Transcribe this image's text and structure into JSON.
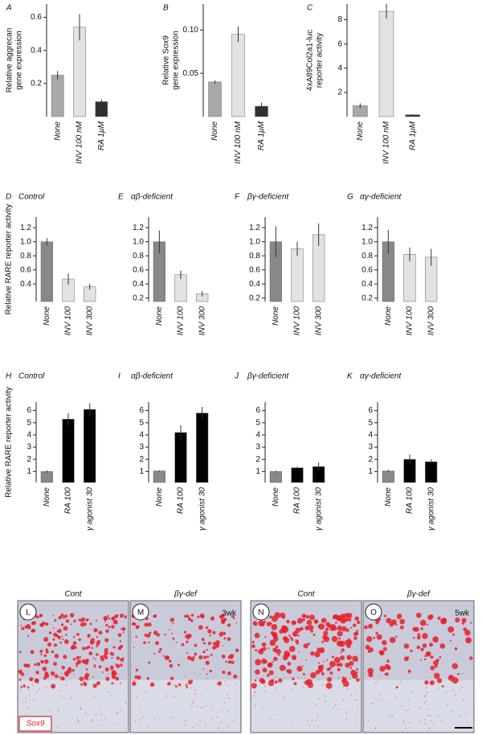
{
  "chart_data": [
    {
      "type": "bar",
      "label": "A",
      "ylabel": [
        "Relative aggrecan",
        "gene expression"
      ],
      "categories": [
        "None",
        "INV 100 nM",
        "RA 1µM"
      ],
      "values": [
        0.25,
        0.54,
        0.09
      ],
      "errors": [
        0.025,
        0.08,
        0.015
      ],
      "colors": [
        "#a8a8a8",
        "#e2e2e2",
        "#303030"
      ],
      "ylim": [
        0,
        0.68
      ],
      "yticks": [
        {
          "value": 0.2,
          "label": "0.2"
        },
        {
          "value": 0.4,
          "label": "0.4"
        },
        {
          "value": 0.6,
          "label": "0.6"
        }
      ]
    },
    {
      "type": "bar",
      "label": "B",
      "ylabel": [
        "Relative Sox9",
        "gene expression"
      ],
      "categories": [
        "None",
        "INV 100 nM",
        "RA 1µM"
      ],
      "values": [
        0.04,
        0.095,
        0.012
      ],
      "errors": [
        0.002,
        0.009,
        0.004
      ],
      "colors": [
        "#a8a8a8",
        "#e2e2e2",
        "#303030"
      ],
      "ylim": [
        0,
        0.13
      ],
      "yticks": [
        {
          "value": 0.05,
          "label": "0.05"
        },
        {
          "value": 0.1,
          "label": "0.10"
        }
      ]
    },
    {
      "type": "bar",
      "label": "C",
      "ylabel": [
        "4xA89Col2a1-luc",
        "reporter activity"
      ],
      "categories": [
        "None",
        "INV 100 nM",
        "RA 1µM"
      ],
      "values": [
        0.9,
        8.7,
        0.15
      ],
      "errors": [
        0.2,
        0.6,
        0.05
      ],
      "colors": [
        "#a8a8a8",
        "#e2e2e2",
        "#303030"
      ],
      "ylim": [
        0,
        9.3
      ],
      "yticks": [
        2,
        4,
        6,
        8
      ]
    },
    {
      "type": "bar",
      "label": "D",
      "title": "Control",
      "ylabel": [
        "Relative RARE reporter activity"
      ],
      "categories": [
        "None",
        "INV 100",
        "INV 300"
      ],
      "values": [
        1.0,
        0.47,
        0.36
      ],
      "errors": [
        0.05,
        0.08,
        0.04
      ],
      "colors": [
        "#888888",
        "#e2e2e2",
        "#e2e2e2"
      ],
      "ylim": [
        0.15,
        1.35
      ],
      "yticks": [
        {
          "value": 0.4,
          "label": "0.4"
        },
        {
          "value": 0.6,
          "label": "0.6"
        },
        {
          "value": 0.8,
          "label": "0.8"
        },
        {
          "value": 1,
          "label": "1.0"
        },
        {
          "value": 1.2,
          "label": "1.2"
        }
      ]
    },
    {
      "type": "bar",
      "label": "E",
      "title": "αβ-deficient",
      "categories": [
        "None",
        "INV 100",
        "INV 300"
      ],
      "values": [
        1.0,
        0.53,
        0.26
      ],
      "errors": [
        0.16,
        0.06,
        0.04
      ],
      "colors": [
        "#888888",
        "#e2e2e2",
        "#e2e2e2"
      ],
      "ylim": [
        0.15,
        1.35
      ],
      "yticks": [
        {
          "value": 0.2,
          "label": "0.2"
        },
        {
          "value": 0.4,
          "label": "0.4"
        },
        {
          "value": 0.6,
          "label": "0.6"
        },
        {
          "value": 0.8,
          "label": "0.8"
        },
        {
          "value": 1,
          "label": "1.0"
        },
        {
          "value": 1.2,
          "label": "1.2"
        }
      ]
    },
    {
      "type": "bar",
      "label": "F",
      "title": "βγ-deficient",
      "categories": [
        "None",
        "INV 100",
        "INV 300"
      ],
      "values": [
        1.0,
        0.9,
        1.1
      ],
      "errors": [
        0.22,
        0.1,
        0.16
      ],
      "colors": [
        "#888888",
        "#e2e2e2",
        "#e2e2e2"
      ],
      "ylim": [
        0.15,
        1.35
      ],
      "yticks": [
        {
          "value": 0.2,
          "label": "0.2"
        },
        {
          "value": 0.4,
          "label": "0.4"
        },
        {
          "value": 0.6,
          "label": "0.6"
        },
        {
          "value": 0.8,
          "label": "0.8"
        },
        {
          "value": 1,
          "label": "1.0"
        },
        {
          "value": 1.2,
          "label": "1.2"
        }
      ]
    },
    {
      "type": "bar",
      "label": "G",
      "title": "αγ-deficient",
      "categories": [
        "None",
        "INV 100",
        "INV 300"
      ],
      "values": [
        1.0,
        0.82,
        0.78
      ],
      "errors": [
        0.17,
        0.1,
        0.12
      ],
      "colors": [
        "#888888",
        "#e2e2e2",
        "#e2e2e2"
      ],
      "ylim": [
        0.15,
        1.35
      ],
      "yticks": [
        {
          "value": 0.2,
          "label": "0.2"
        },
        {
          "value": 0.4,
          "label": "0.4"
        },
        {
          "value": 0.6,
          "label": "0.6"
        },
        {
          "value": 0.8,
          "label": "0.8"
        },
        {
          "value": 1,
          "label": "1.0"
        },
        {
          "value": 1.2,
          "label": "1.2"
        }
      ]
    },
    {
      "type": "bar",
      "label": "H",
      "title": "Control",
      "ylabel": [
        "Relative RARE reporter activity"
      ],
      "categories": [
        "None",
        "RA 100",
        "γ agonist 30"
      ],
      "values": [
        1.0,
        5.3,
        6.1
      ],
      "errors": [
        0.1,
        0.5,
        0.5
      ],
      "colors": [
        "#888888",
        "#000000",
        "#000000"
      ],
      "ylim": [
        0.1,
        6.7
      ],
      "yticks": [
        1,
        2,
        3,
        4,
        5,
        6
      ]
    },
    {
      "type": "bar",
      "label": "I",
      "title": "αβ-deficient",
      "categories": [
        "None",
        "RA 100",
        "γ agonist 30"
      ],
      "values": [
        1.05,
        4.2,
        5.8
      ],
      "errors": [
        0.05,
        0.6,
        0.5
      ],
      "colors": [
        "#888888",
        "#000000",
        "#000000"
      ],
      "ylim": [
        0.1,
        6.7
      ],
      "yticks": [
        1,
        2,
        3,
        4,
        5,
        6
      ]
    },
    {
      "type": "bar",
      "label": "J",
      "title": "βγ-deficient",
      "categories": [
        "None",
        "RA 100",
        "γ agonist 30"
      ],
      "values": [
        1.0,
        1.3,
        1.4
      ],
      "errors": [
        0.08,
        0.1,
        0.35
      ],
      "colors": [
        "#888888",
        "#000000",
        "#000000"
      ],
      "ylim": [
        0.1,
        6.7
      ],
      "yticks": [
        1,
        2,
        3,
        4,
        5,
        6
      ]
    },
    {
      "type": "bar",
      "label": "K",
      "title": "αγ-deficient",
      "categories": [
        "None",
        "RA 100",
        "γ agonist 30"
      ],
      "values": [
        1.05,
        2.0,
        1.8
      ],
      "errors": [
        0.08,
        0.4,
        0.2
      ],
      "colors": [
        "#888888",
        "#000000",
        "#000000"
      ],
      "ylim": [
        0.1,
        6.7
      ],
      "yticks": [
        1,
        2,
        3,
        4,
        5,
        6
      ]
    }
  ],
  "images": {
    "panels": [
      {
        "letter": "L",
        "title": "Cont"
      },
      {
        "letter": "M",
        "title": "βγ-def",
        "note": "3wk"
      },
      {
        "letter": "N",
        "title": "Cont"
      },
      {
        "letter": "O",
        "title": "βγ-def",
        "note": "5wk"
      }
    ],
    "stain": "Sox9"
  }
}
